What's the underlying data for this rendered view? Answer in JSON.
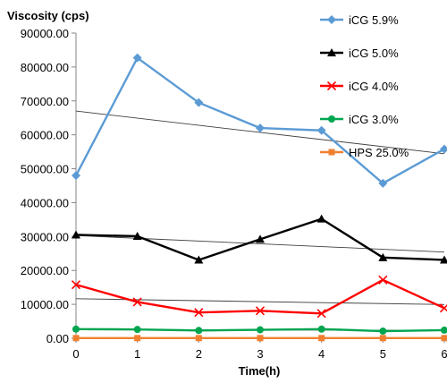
{
  "chart_data": {
    "type": "line",
    "title": "",
    "ylabel": "Viscosity (cps)",
    "xlabel": "Time(h)",
    "x": [
      0,
      1,
      2,
      3,
      4,
      5,
      6
    ],
    "xlim": [
      0,
      6
    ],
    "ylim": [
      0,
      90000
    ],
    "y_ticks": [
      "0.00",
      "10000.00",
      "20000.00",
      "30000.00",
      "40000.00",
      "50000.00",
      "60000.00",
      "70000.00",
      "80000.00",
      "90000.00"
    ],
    "x_ticks": [
      "0",
      "1",
      "2",
      "3",
      "4",
      "5",
      "6"
    ],
    "grid": false,
    "legend_position": "top-right",
    "trendlines": true,
    "series": [
      {
        "name": "iCG 5.9%",
        "color": "#5b9bd5",
        "marker": "diamond",
        "values": [
          48000,
          82700,
          69500,
          62000,
          61300,
          45700,
          55800
        ]
      },
      {
        "name": "iCG 5.0%",
        "color": "#000000",
        "marker": "triangle",
        "values": [
          30500,
          30100,
          23100,
          29200,
          35200,
          23800,
          23100
        ]
      },
      {
        "name": "iCG 4.0%",
        "color": "#ff0000",
        "marker": "x",
        "values": [
          15800,
          10700,
          7600,
          8100,
          7300,
          17200,
          8900
        ]
      },
      {
        "name": "iCG 3.0%",
        "color": "#00a550",
        "marker": "circle",
        "values": [
          2700,
          2600,
          2300,
          2500,
          2700,
          2100,
          2400
        ]
      },
      {
        "name": "HPS 25.0%",
        "color": "#f08030",
        "marker": "square",
        "values": [
          50,
          50,
          50,
          50,
          50,
          50,
          50
        ]
      }
    ]
  }
}
